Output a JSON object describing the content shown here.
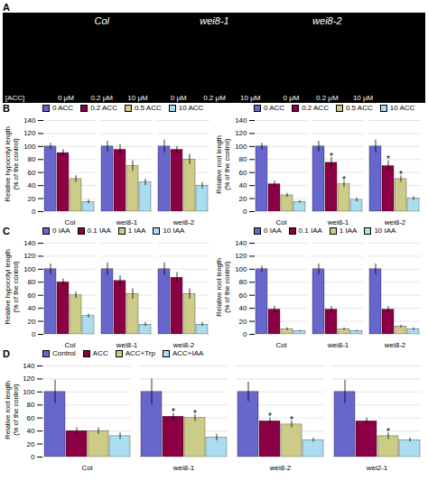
{
  "chart_data": [
    {
      "type": "image",
      "title": "A",
      "categories": [
        "Col",
        "wei8-1",
        "wei8-2"
      ],
      "annotations": [
        "[ACC]",
        "0 μM",
        "0.2 μM",
        "10 μM",
        "0 μM",
        "0.2 μM",
        "10 μM",
        "0 μM",
        "0.2 μM",
        "10 μM"
      ]
    },
    {
      "type": "bar",
      "title": "B",
      "y_label": "Relative hypocotyl length\n(% of the control)",
      "categories": [
        "Col",
        "wei8-1",
        "wei8-2"
      ],
      "series": [
        {
          "name": "0 ACC",
          "color": "#6666cc",
          "values": [
            100,
            100,
            100
          ],
          "errors": [
            5,
            8,
            10
          ]
        },
        {
          "name": "0.2 ACC",
          "color": "#8b0045",
          "values": [
            90,
            95,
            95
          ],
          "errors": [
            5,
            8,
            5
          ]
        },
        {
          "name": "0.5 ACC",
          "color": "#cccc88",
          "values": [
            50,
            70,
            80
          ],
          "errors": [
            5,
            8,
            8
          ]
        },
        {
          "name": "10 ACC",
          "color": "#aaddee",
          "values": [
            15,
            45,
            40
          ],
          "errors": [
            3,
            5,
            5
          ]
        }
      ],
      "ylim": [
        0,
        140
      ],
      "yticks": [
        0,
        20,
        40,
        60,
        80,
        100,
        120,
        140
      ],
      "grid": true
    },
    {
      "type": "bar",
      "y_label": "Relative root length\n(% of the control)",
      "categories": [
        "Col",
        "wei8-1",
        "wei8-2"
      ],
      "series": [
        {
          "name": "0 ACC",
          "color": "#6666cc",
          "values": [
            100,
            100,
            100
          ],
          "errors": [
            5,
            8,
            10
          ]
        },
        {
          "name": "0.2 ACC",
          "color": "#8b0045",
          "values": [
            42,
            75,
            70
          ],
          "errors": [
            5,
            8,
            8
          ],
          "stars": [
            null,
            "*",
            "*"
          ]
        },
        {
          "name": "0.5 ACC",
          "color": "#cccc88",
          "values": [
            25,
            42,
            50
          ],
          "errors": [
            3,
            5,
            5
          ],
          "stars": [
            null,
            "*",
            "*"
          ]
        },
        {
          "name": "10 ACC",
          "color": "#aaddee",
          "values": [
            15,
            18,
            20
          ],
          "errors": [
            2,
            3,
            3
          ]
        }
      ],
      "ylim": [
        0,
        140
      ],
      "yticks": [
        0,
        20,
        40,
        60,
        80,
        100,
        120,
        140
      ],
      "grid": true
    },
    {
      "type": "bar",
      "title": "C",
      "y_label": "Relative hypocotyl length\n(% of the control)",
      "categories": [
        "Col",
        "wei8-1",
        "wei8-2"
      ],
      "series": [
        {
          "name": "0 IAA",
          "color": "#6666cc",
          "values": [
            100,
            100,
            100
          ],
          "errors": [
            8,
            10,
            10
          ]
        },
        {
          "name": "0.1 IAA",
          "color": "#8b0045",
          "values": [
            80,
            82,
            87
          ],
          "errors": [
            5,
            8,
            8
          ]
        },
        {
          "name": "1 IAA",
          "color": "#cccc88",
          "values": [
            60,
            62,
            62
          ],
          "errors": [
            5,
            8,
            8
          ]
        },
        {
          "name": "10 IAA",
          "color": "#aaddee",
          "values": [
            28,
            15,
            15
          ],
          "errors": [
            3,
            3,
            3
          ]
        }
      ],
      "ylim": [
        0,
        140
      ],
      "yticks": [
        0,
        20,
        40,
        60,
        80,
        100,
        120,
        140
      ],
      "grid": true
    },
    {
      "type": "bar",
      "y_label": "Relative root length\n(% of the control)",
      "categories": [
        "Col",
        "wei8-1",
        "wei8-2"
      ],
      "series": [
        {
          "name": "0 IAA",
          "color": "#6666cc",
          "values": [
            100,
            100,
            100
          ],
          "errors": [
            5,
            8,
            8
          ]
        },
        {
          "name": "0.1 IAA",
          "color": "#8b0045",
          "values": [
            38,
            38,
            38
          ],
          "errors": [
            5,
            5,
            5
          ]
        },
        {
          "name": "1 IAA",
          "color": "#cccc88",
          "values": [
            8,
            8,
            12
          ],
          "errors": [
            2,
            2,
            2
          ]
        },
        {
          "name": "10 IAA",
          "color": "#aaddee",
          "values": [
            5,
            5,
            8
          ],
          "errors": [
            1,
            1,
            2
          ]
        }
      ],
      "ylim": [
        0,
        140
      ],
      "yticks": [
        0,
        20,
        40,
        60,
        80,
        100,
        120,
        140
      ],
      "grid": true
    },
    {
      "type": "bar",
      "title": "D",
      "y_label": "Relative root length\n(% of the control)",
      "categories": [
        "Col",
        "wei8-1",
        "wei8-2",
        "wei2-1"
      ],
      "series": [
        {
          "name": "Control",
          "color": "#6666cc",
          "values": [
            100,
            100,
            100,
            100
          ],
          "errors": [
            18,
            20,
            15,
            18
          ]
        },
        {
          "name": "ACC",
          "color": "#8b0045",
          "values": [
            40,
            62,
            55,
            55
          ],
          "errors": [
            5,
            5,
            5,
            5
          ],
          "stars": [
            null,
            "*",
            "*",
            null
          ]
        },
        {
          "name": "ACC+Trp",
          "color": "#cccc88",
          "values": [
            40,
            60,
            50,
            32
          ],
          "errors": [
            5,
            5,
            5,
            5
          ],
          "stars": [
            null,
            "*",
            "*",
            "*"
          ]
        },
        {
          "name": "ACC+IAA",
          "color": "#aaddee",
          "values": [
            32,
            30,
            26,
            26
          ],
          "errors": [
            5,
            5,
            3,
            3
          ]
        }
      ],
      "ylim": [
        0,
        140
      ],
      "yticks": [
        0,
        20,
        40,
        60,
        80,
        100,
        120,
        140
      ],
      "grid": true
    }
  ]
}
